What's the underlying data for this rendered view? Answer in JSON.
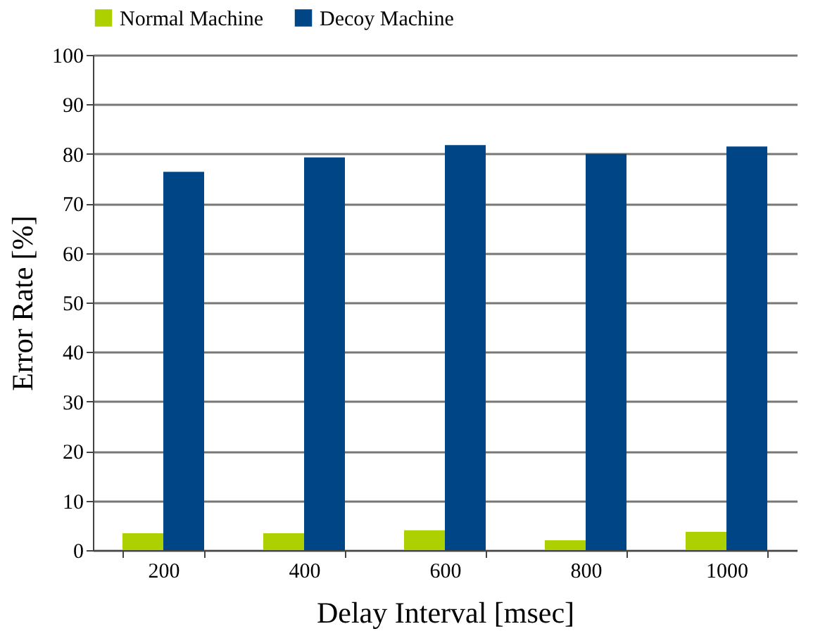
{
  "chart_data": {
    "type": "bar",
    "xlabel": "Delay Interval [msec]",
    "ylabel": "Error Rate [%]",
    "categories": [
      "200",
      "400",
      "600",
      "800",
      "1000"
    ],
    "series": [
      {
        "name": "Normal Machine",
        "color": "#acd000",
        "values": [
          3.4,
          3.4,
          4.0,
          2.0,
          3.7
        ]
      },
      {
        "name": "Decoy Machine",
        "color": "#004586",
        "values": [
          76.4,
          79.3,
          81.8,
          80.0,
          81.5
        ]
      }
    ],
    "ylim": [
      0,
      100
    ],
    "yticks": [
      0,
      10,
      20,
      30,
      40,
      50,
      60,
      70,
      80,
      90,
      100
    ],
    "grid": "y",
    "legend": "top"
  }
}
